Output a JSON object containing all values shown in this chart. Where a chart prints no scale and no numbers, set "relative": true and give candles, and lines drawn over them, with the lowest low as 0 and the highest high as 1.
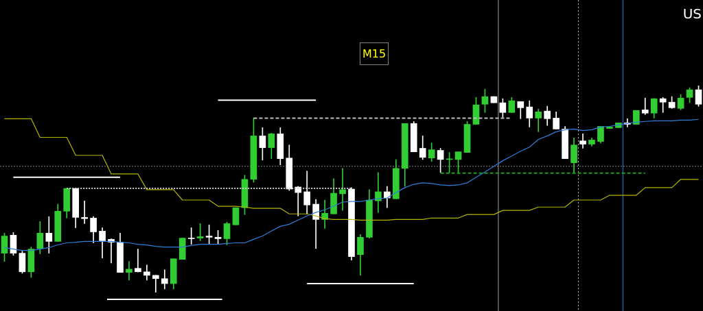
{
  "chart_data": {
    "type": "candlestick",
    "relative": true,
    "legend": false,
    "annotations": [
      "M15",
      "US"
    ],
    "categories": [
      null,
      null,
      null,
      null,
      null,
      null,
      null,
      null,
      null,
      null,
      null,
      null,
      null,
      null,
      null,
      null,
      null,
      null,
      null,
      null,
      null,
      null,
      null,
      null,
      null,
      null,
      null,
      null,
      null,
      null,
      null,
      null,
      null,
      null,
      null,
      null,
      null,
      null,
      null,
      null,
      null,
      null,
      null,
      null,
      null,
      null,
      null,
      null,
      null,
      null,
      null,
      null,
      null,
      null,
      null,
      null,
      null,
      null,
      null,
      null,
      null,
      null,
      null,
      null,
      null,
      null,
      null,
      null,
      null,
      null,
      null,
      null,
      null,
      null,
      null,
      null,
      null,
      null,
      null
    ],
    "ref_lines": [
      {
        "axis": "y",
        "value": 0.61,
        "color": "#808080",
        "line_style": "dotted"
      }
    ],
    "series": [
      {
        "type": "candlestick",
        "ohlc": [
          [
            0.19,
            0.287,
            0.15,
            0.273
          ],
          [
            0.277,
            0.29,
            0.18,
            0.19
          ],
          [
            0.19,
            0.2,
            0.093,
            0.1
          ],
          [
            0.1,
            0.22,
            0.073,
            0.21
          ],
          [
            0.213,
            0.343,
            0.187,
            0.287
          ],
          [
            0.287,
            0.367,
            0.19,
            0.247
          ],
          [
            0.247,
            0.427,
            0.247,
            0.393
          ],
          [
            0.393,
            0.503,
            0.36,
            0.503
          ],
          [
            0.503,
            0.503,
            0.313,
            0.363
          ],
          [
            0.363,
            0.443,
            0.333,
            0.357
          ],
          [
            0.36,
            0.367,
            0.24,
            0.293
          ],
          [
            0.297,
            0.313,
            0.167,
            0.25
          ],
          [
            0.257,
            0.26,
            0.143,
            0.243
          ],
          [
            0.243,
            0.287,
            0.097,
            0.097
          ],
          [
            0.097,
            0.15,
            0.06,
            0.113
          ],
          [
            0.117,
            0.21,
            0.1,
            0.1
          ],
          [
            0.1,
            0.133,
            0.06,
            0.083
          ],
          [
            0.083,
            0.083,
            0,
            0.067
          ],
          [
            0.067,
            0.11,
            0.017,
            0.043
          ],
          [
            0.043,
            0.163,
            0.017,
            0.163
          ],
          [
            0.16,
            0.263,
            0.16,
            0.263
          ],
          [
            0.26,
            0.313,
            0.233,
            0.26
          ],
          [
            0.263,
            0.333,
            0.25,
            0.27
          ],
          [
            0.273,
            0.327,
            0.233,
            0.267
          ],
          [
            0.267,
            0.3,
            0.233,
            0.26
          ],
          [
            0.26,
            0.34,
            0.23,
            0.333
          ],
          [
            0.327,
            0.41,
            0.327,
            0.41
          ],
          [
            0.41,
            0.567,
            0.377,
            0.547
          ],
          [
            0.547,
            0.843,
            0.533,
            0.757
          ],
          [
            0.757,
            0.797,
            0.64,
            0.7
          ],
          [
            0.7,
            0.77,
            0.647,
            0.767
          ],
          [
            0.767,
            0.797,
            0.617,
            0.647
          ],
          [
            0.65,
            0.713,
            0.493,
            0.5
          ],
          [
            0.51,
            0.513,
            0.37,
            0.483
          ],
          [
            0.487,
            0.587,
            0.38,
            0.423
          ],
          [
            0.427,
            0.45,
            0.213,
            0.353
          ],
          [
            0.353,
            0.447,
            0.31,
            0.383
          ],
          [
            0.38,
            0.55,
            0.38,
            0.48
          ],
          [
            0.477,
            0.6,
            0.397,
            0.497
          ],
          [
            0.5,
            0.507,
            0.157,
            0.173
          ],
          [
            0.183,
            0.28,
            0.083,
            0.267
          ],
          [
            0.267,
            0.497,
            0.263,
            0.447
          ],
          [
            0.443,
            0.58,
            0.387,
            0.487
          ],
          [
            0.487,
            0.513,
            0.41,
            0.457
          ],
          [
            0.453,
            0.643,
            0.453,
            0.6
          ],
          [
            0.6,
            0.817,
            0.513,
            0.817
          ],
          [
            0.817,
            0.827,
            0.68,
            0.68
          ],
          [
            0.697,
            0.757,
            0.643,
            0.653
          ],
          [
            0.65,
            0.723,
            0.633,
            0.69
          ],
          [
            0.687,
            0.697,
            0.58,
            0.643
          ],
          [
            0.643,
            0.677,
            0.58,
            0.643
          ],
          [
            0.643,
            0.68,
            0.58,
            0.68
          ],
          [
            0.677,
            0.827,
            0.677,
            0.813
          ],
          [
            0.813,
            0.943,
            0.813,
            0.907
          ],
          [
            0.91,
            0.983,
            0.87,
            0.947
          ],
          [
            0.947,
            0.947,
            0.917,
            0.917
          ],
          [
            0.917,
            0.937,
            0.847,
            0.87
          ],
          [
            0.87,
            0.943,
            0.87,
            0.927
          ],
          [
            0.923,
            0.923,
            0.84,
            0.893
          ],
          [
            0.897,
            0.927,
            0.8,
            0.843
          ],
          [
            0.843,
            0.887,
            0.777,
            0.873
          ],
          [
            0.877,
            0.9,
            0.807,
            0.84
          ],
          [
            0.843,
            0.873,
            0.79,
            0.79
          ],
          [
            0.79,
            0.803,
            0.647,
            0.647
          ],
          [
            0.627,
            0.747,
            0.577,
            0.713
          ],
          [
            0.733,
            0.767,
            0.697,
            0.717
          ],
          [
            0.717,
            0.747,
            0.707,
            0.737
          ],
          [
            0.73,
            0.803,
            0.723,
            0.803
          ],
          [
            0.793,
            0.8,
            0.793,
            0.8
          ],
          [
            0.797,
            0.82,
            0.797,
            0.82
          ],
          [
            0.82,
            0.84,
            0.8,
            0.813
          ],
          [
            0.813,
            0.88,
            0.813,
            0.88
          ],
          [
            0.883,
            0.94,
            0.86,
            0.867
          ],
          [
            0.867,
            0.937,
            0.843,
            0.937
          ],
          [
            0.937,
            0.943,
            0.87,
            0.92
          ],
          [
            0.92,
            0.947,
            0.89,
            0.893
          ],
          [
            0.89,
            0.957,
            0.883,
            0.94
          ],
          [
            0.943,
            0.99,
            0.917,
            0.98
          ],
          [
            0.98,
            1,
            0.9,
            0.91
          ]
        ],
        "colors": [
          "#32cd32",
          "#ffffff",
          "#ffffff",
          "#32cd32",
          "#32cd32",
          "#ffffff",
          "#32cd32",
          "#32cd32",
          "#ffffff",
          "#ffffff",
          "#ffffff",
          "#ffffff",
          "#ffffff",
          "#ffffff",
          "#32cd32",
          "#ffffff",
          "#ffffff",
          "#ffffff",
          "#ffffff",
          "#32cd32",
          "#32cd32",
          "#ffffff",
          "#32cd32",
          "#ffffff",
          "#ffffff",
          "#32cd32",
          "#32cd32",
          "#32cd32",
          "#32cd32",
          "#ffffff",
          "#32cd32",
          "#ffffff",
          "#ffffff",
          "#ffffff",
          "#ffffff",
          "#ffffff",
          "#32cd32",
          "#32cd32",
          "#32cd32",
          "#ffffff",
          "#32cd32",
          "#32cd32",
          "#32cd32",
          "#ffffff",
          "#32cd32",
          "#32cd32",
          "#ffffff",
          "#ffffff",
          "#32cd32",
          "#ffffff",
          "#32cd32",
          "#32cd32",
          "#32cd32",
          "#32cd32",
          "#32cd32",
          "#ffffff",
          "#ffffff",
          "#32cd32",
          "#ffffff",
          "#ffffff",
          "#32cd32",
          "#ffffff",
          "#ffffff",
          "#ffffff",
          "#32cd32",
          "#ffffff",
          "#32cd32",
          "#32cd32",
          "#32cd32",
          "#32cd32",
          "#ffffff",
          "#32cd32",
          "#ffffff",
          "#32cd32",
          "#ffffff",
          "#ffffff",
          "#32cd32",
          "#32cd32",
          "#ffffff"
        ]
      },
      {
        "type": "line",
        "color": "#2f7fd8",
        "line_style": "solid",
        "values": [
          0.217,
          0.21,
          0.203,
          0.203,
          0.21,
          0.217,
          0.23,
          0.24,
          0.243,
          0.247,
          0.247,
          0.247,
          0.247,
          0.243,
          0.24,
          0.233,
          0.23,
          0.223,
          0.22,
          0.22,
          0.22,
          0.227,
          0.233,
          0.233,
          0.233,
          0.237,
          0.24,
          0.24,
          0.257,
          0.273,
          0.297,
          0.32,
          0.33,
          0.35,
          0.37,
          0.387,
          0.4,
          0.417,
          0.437,
          0.44,
          0.44,
          0.447,
          0.453,
          0.457,
          0.483,
          0.507,
          0.523,
          0.53,
          0.527,
          0.52,
          0.517,
          0.52,
          0.53,
          0.557,
          0.583,
          0.61,
          0.637,
          0.66,
          0.683,
          0.703,
          0.74,
          0.757,
          0.777,
          0.787,
          0.79,
          0.783,
          0.787,
          0.8,
          0.803,
          0.81,
          0.817,
          0.823,
          0.827,
          0.83,
          0.83,
          0.83,
          0.833,
          0.833,
          0.837
        ]
      },
      {
        "type": "line",
        "color": "#b5b500",
        "line_style": "solid",
        "values": [
          0.84,
          0.84,
          0.84,
          0.84,
          0.75,
          0.75,
          0.75,
          0.75,
          0.663,
          0.663,
          0.663,
          0.663,
          0.573,
          0.573,
          0.573,
          0.573,
          0.497,
          0.497,
          0.497,
          0.497,
          0.447,
          0.447,
          0.447,
          0.447,
          0.417,
          0.417,
          0.417,
          0.413,
          0.407,
          0.407,
          0.407,
          0.407,
          0.38,
          0.38,
          0.38,
          0.37,
          0.357,
          0.353,
          0.353,
          0.353,
          0.35,
          0.35,
          0.35,
          0.35,
          0.353,
          0.353,
          0.353,
          0.353,
          0.36,
          0.36,
          0.36,
          0.36,
          0.377,
          0.377,
          0.377,
          0.377,
          0.397,
          0.397,
          0.397,
          0.397,
          0.413,
          0.413,
          0.413,
          0.413,
          0.447,
          0.447,
          0.447,
          0.447,
          0.47,
          0.47,
          0.47,
          0.47,
          0.507,
          0.507,
          0.507,
          0.507,
          0.547,
          0.547,
          0.547
        ]
      },
      {
        "type": "line",
        "color": "#ffffff",
        "line_style": "solid",
        "values": [
          null,
          0.557,
          0.557,
          0.557,
          0.557,
          0.557,
          0.557,
          0.557,
          0.557,
          0.557,
          0.557,
          0.557,
          0.557,
          0.557,
          null,
          null,
          null,
          null,
          null,
          null,
          null,
          null,
          null,
          null,
          null,
          null,
          null,
          null,
          null,
          null,
          null,
          null,
          null,
          null,
          null,
          null,
          null,
          null,
          null,
          null,
          null,
          null,
          null,
          null,
          null,
          null,
          null,
          null,
          null,
          null,
          null,
          null,
          null,
          null,
          null,
          null,
          null,
          null,
          null,
          null,
          null,
          null,
          null,
          null,
          null,
          null,
          null,
          null,
          null,
          null,
          null,
          null,
          null,
          null,
          null,
          null,
          null,
          null,
          null
        ]
      },
      {
        "type": "line",
        "color": "#ffffff",
        "line_style": "solid",
        "values": [
          null,
          null,
          null,
          null,
          null,
          null,
          null,
          null,
          null,
          null,
          null,
          null,
          null,
          null,
          null,
          null,
          null,
          null,
          null,
          null,
          null,
          null,
          null,
          null,
          0.93,
          0.93,
          0.93,
          0.93,
          0.93,
          0.93,
          0.93,
          0.93,
          0.93,
          0.93,
          0.93,
          0.93,
          null,
          null,
          null,
          null,
          null,
          null,
          null,
          null,
          null,
          null,
          null,
          null,
          null,
          null,
          null,
          null,
          null,
          null,
          null,
          null,
          null,
          null,
          null,
          null,
          null,
          null,
          null,
          null,
          null,
          null,
          null,
          null,
          null,
          null,
          null,
          null,
          null,
          null,
          null,
          null,
          null,
          null,
          null
        ]
      },
      {
        "type": "line",
        "color": "#ffffff",
        "line_style": "solid",
        "values": [
          null,
          null,
          null,
          null,
          null,
          null,
          null,
          null,
          null,
          null,
          null,
          null,
          null,
          null,
          null,
          null,
          null,
          null,
          null,
          null,
          null,
          null,
          null,
          null,
          null,
          null,
          null,
          null,
          null,
          null,
          null,
          null,
          null,
          null,
          0.043,
          0.043,
          0.043,
          0.043,
          0.043,
          0.043,
          0.043,
          0.043,
          0.043,
          0.043,
          0.043,
          0.043,
          0.043,
          null,
          null,
          null,
          null,
          null,
          null,
          null,
          null,
          null,
          null,
          null,
          null,
          null,
          null,
          null,
          null,
          null,
          null,
          null,
          null,
          null,
          null,
          null,
          null,
          null,
          null,
          null,
          null,
          null,
          null,
          null,
          null
        ]
      },
      {
        "type": "line",
        "color": "#c0c0c0",
        "line_style": "dashed",
        "values": [
          null,
          null,
          null,
          null,
          null,
          null,
          null,
          null,
          null,
          null,
          null,
          null,
          null,
          null,
          null,
          null,
          null,
          null,
          null,
          null,
          null,
          null,
          null,
          null,
          null,
          null,
          null,
          null,
          0.843,
          0.843,
          0.843,
          0.843,
          0.843,
          0.843,
          0.843,
          0.843,
          0.843,
          0.843,
          0.843,
          0.843,
          0.843,
          0.843,
          0.843,
          0.843,
          0.843,
          0.843,
          0.843,
          0.843,
          0.843,
          0.843,
          0.843,
          0.843,
          0.843,
          0.843,
          0.843,
          0.843,
          0.843,
          0.843,
          null,
          null,
          null,
          null,
          null,
          null,
          null,
          null,
          null,
          null,
          null,
          null,
          null,
          null,
          null,
          null,
          null,
          null,
          null,
          null,
          null
        ]
      },
      {
        "type": "line",
        "color": "#d0d0d0",
        "line_style": "dotted",
        "values": [
          null,
          null,
          null,
          null,
          null,
          null,
          null,
          0.503,
          0.503,
          0.503,
          0.503,
          0.503,
          0.503,
          0.503,
          0.503,
          0.503,
          0.503,
          0.503,
          0.503,
          0.503,
          0.503,
          0.503,
          0.503,
          0.503,
          0.503,
          0.503,
          0.503,
          0.503,
          0.503,
          0.503,
          0.503,
          0.503,
          0.503,
          0.503,
          0.503,
          0.503,
          0.503,
          0.503,
          0.503,
          0.503,
          null,
          null,
          null,
          null,
          null,
          null,
          null,
          null,
          null,
          null,
          null,
          null,
          null,
          null,
          null,
          null,
          null,
          null,
          null,
          null,
          null,
          null,
          null,
          null,
          null,
          null,
          null,
          null,
          null,
          null,
          null,
          null,
          null,
          null,
          null,
          null,
          null,
          null,
          null
        ]
      },
      {
        "type": "line",
        "color": "#1f9a1f",
        "line_style": "dashed",
        "values": [
          null,
          null,
          null,
          null,
          null,
          null,
          null,
          null,
          null,
          null,
          null,
          null,
          null,
          null,
          null,
          null,
          null,
          null,
          null,
          null,
          null,
          null,
          null,
          null,
          null,
          null,
          null,
          null,
          null,
          null,
          null,
          null,
          null,
          null,
          null,
          null,
          null,
          null,
          null,
          null,
          null,
          null,
          null,
          null,
          null,
          null,
          null,
          null,
          null,
          0.577,
          0.577,
          0.577,
          0.577,
          0.577,
          0.577,
          0.577,
          0.577,
          0.577,
          0.577,
          0.577,
          0.577,
          0.577,
          0.577,
          0.577,
          0.577,
          0.577,
          0.577,
          0.577,
          0.577,
          0.577,
          0.577,
          0.577,
          0.577,
          null,
          null,
          null,
          null,
          null,
          null
        ]
      }
    ]
  }
}
